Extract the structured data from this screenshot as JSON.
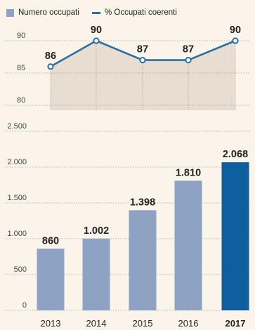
{
  "legend": {
    "bar_label": "Numero occupati",
    "line_label": "% Occupati coerenti"
  },
  "colors": {
    "background": "#fbf4ea",
    "bar": "#8ea2c4",
    "bar_highlight": "#0f5f9e",
    "line": "#2c6fa3",
    "area": "#e7ddd1",
    "grid": "#9a9a9a",
    "text": "#222222",
    "tick_text": "#444444"
  },
  "chart_data": [
    {
      "type": "bar",
      "categories": [
        "2013",
        "2014",
        "2015",
        "2016",
        "2017"
      ],
      "series": [
        {
          "name": "Numero occupati",
          "values": [
            860,
            1002,
            1398,
            1810,
            2068
          ]
        }
      ],
      "data_labels": [
        "860",
        "1.002",
        "1.398",
        "1.810",
        "2.068"
      ],
      "highlight_category": "2017",
      "ylim": [
        0,
        2500
      ],
      "yticks": [
        0,
        500,
        1000,
        1500,
        2000,
        2500
      ],
      "ytick_labels": [
        "0",
        "500",
        "1.000",
        "1.500",
        "2.000",
        "2.500"
      ],
      "grid": true
    },
    {
      "type": "line",
      "categories": [
        "2013",
        "2014",
        "2015",
        "2016",
        "2017"
      ],
      "series": [
        {
          "name": "% Occupati coerenti",
          "values": [
            86,
            90,
            87,
            87,
            90
          ]
        }
      ],
      "data_labels": [
        "86",
        "90",
        "87",
        "87",
        "90"
      ],
      "ylim": [
        80,
        90
      ],
      "yticks": [
        80,
        85,
        90
      ],
      "ytick_labels": [
        "80",
        "85",
        "90"
      ],
      "area_fill": true,
      "grid": true
    }
  ]
}
